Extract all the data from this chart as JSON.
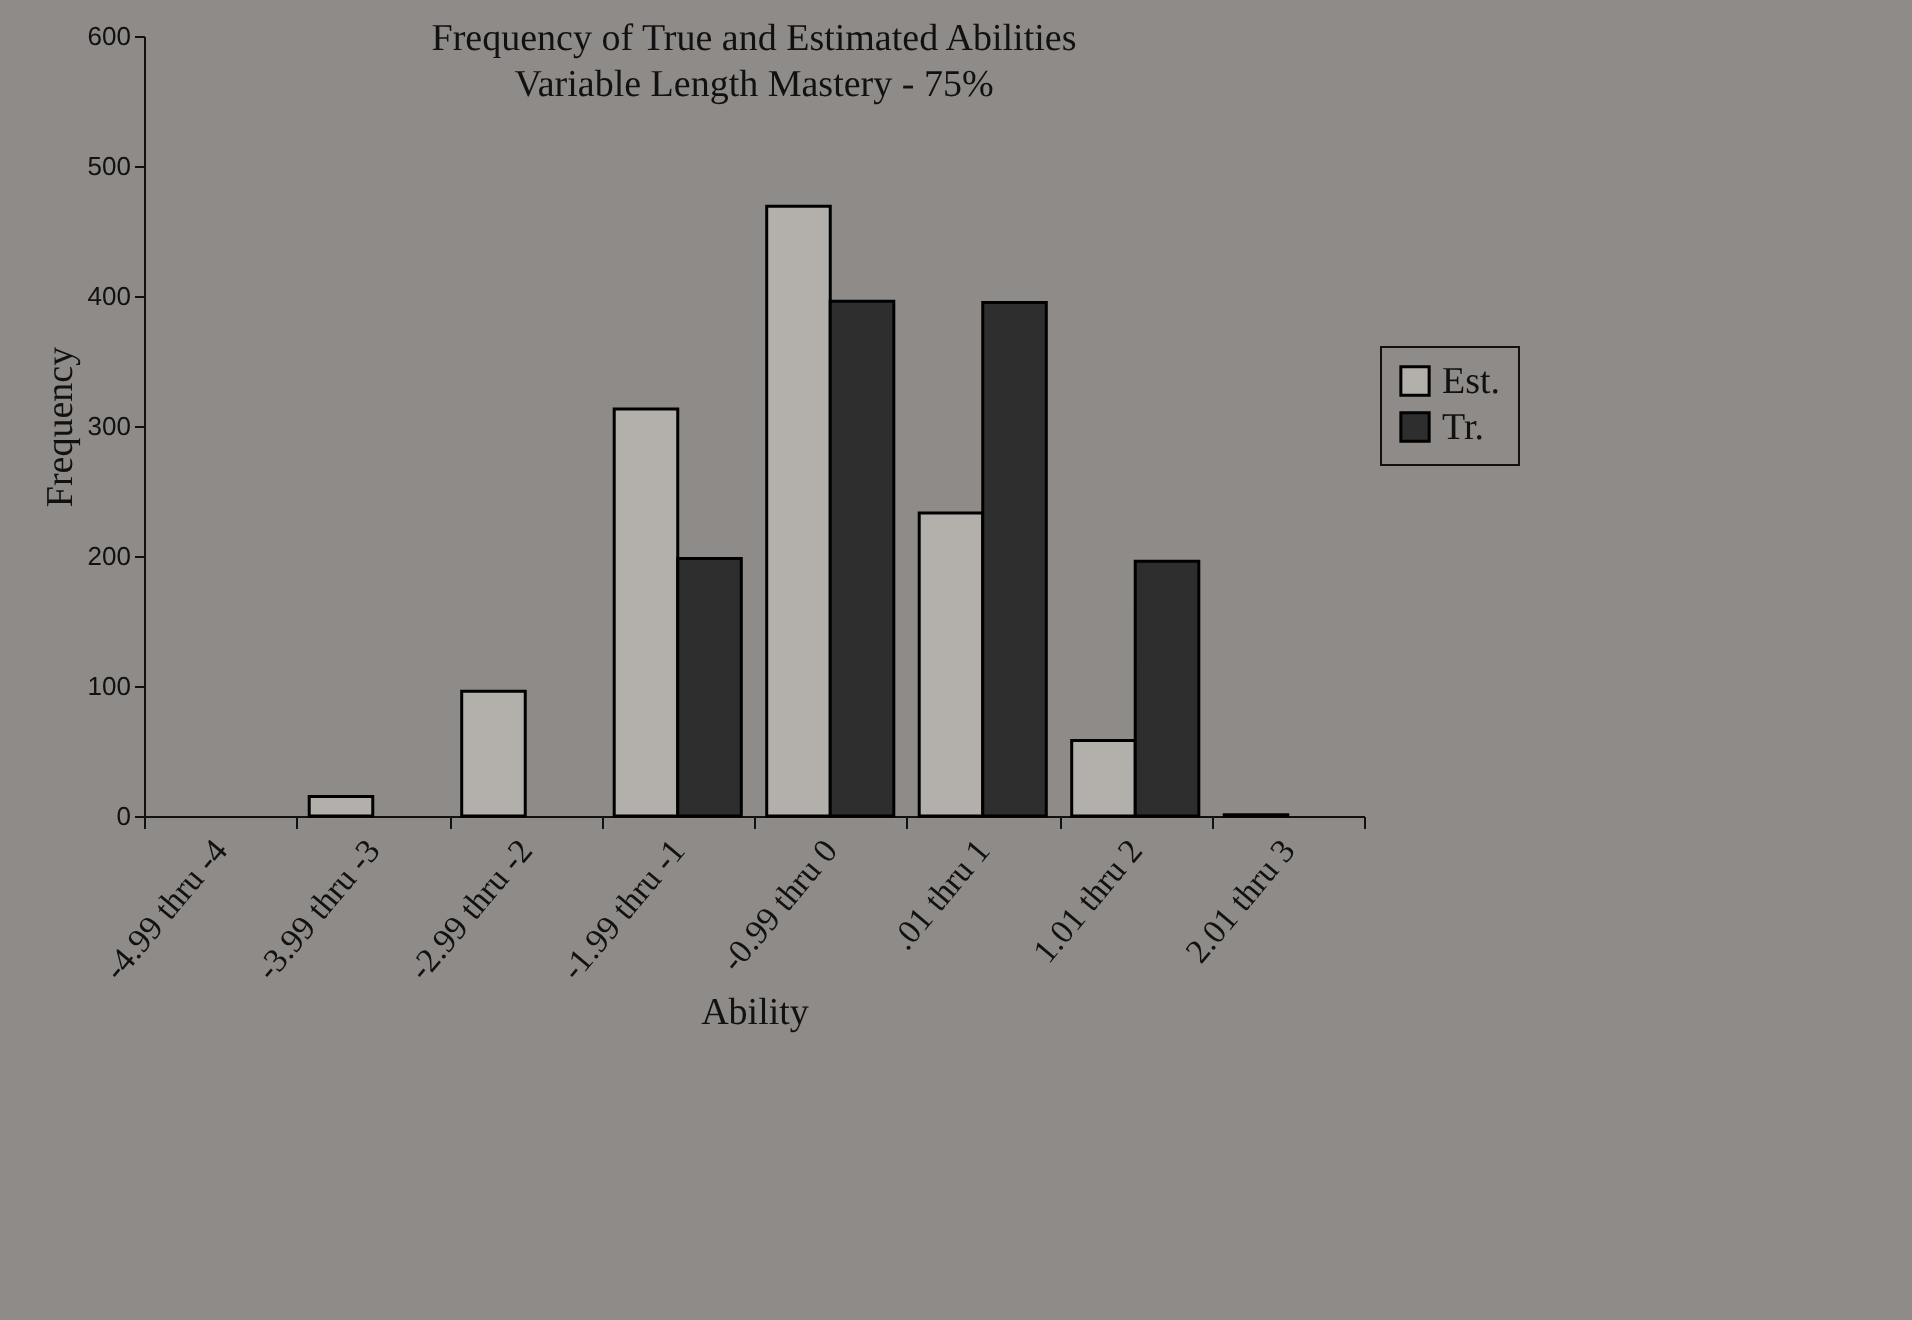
{
  "chart_data": {
    "type": "bar",
    "title": "Frequency of True and Estimated Abilities",
    "subtitle": "Variable Length Mastery - 75%",
    "xlabel": "Ability",
    "ylabel": "Frequency",
    "categories": [
      "-4.99 thru -4",
      "-3.99 thru -3",
      "-2.99 thru -2",
      "-1.99 thru -1",
      "-0.99 thru 0",
      ".01 thru 1",
      "1.01 thru 2",
      "2.01 thru 3"
    ],
    "series": [
      {
        "name": "Est.",
        "color": "#b3b0ac",
        "values": [
          0,
          15,
          96,
          313,
          469,
          233,
          58,
          1
        ]
      },
      {
        "name": "Tr.",
        "color": "#2f2e2e",
        "values": [
          0,
          0,
          0,
          198,
          396,
          395,
          196,
          0
        ]
      }
    ],
    "ylim": [
      0,
      600
    ],
    "yticks": [
      0,
      100,
      200,
      300,
      400,
      500,
      600
    ],
    "grid": false,
    "legend": "right"
  }
}
